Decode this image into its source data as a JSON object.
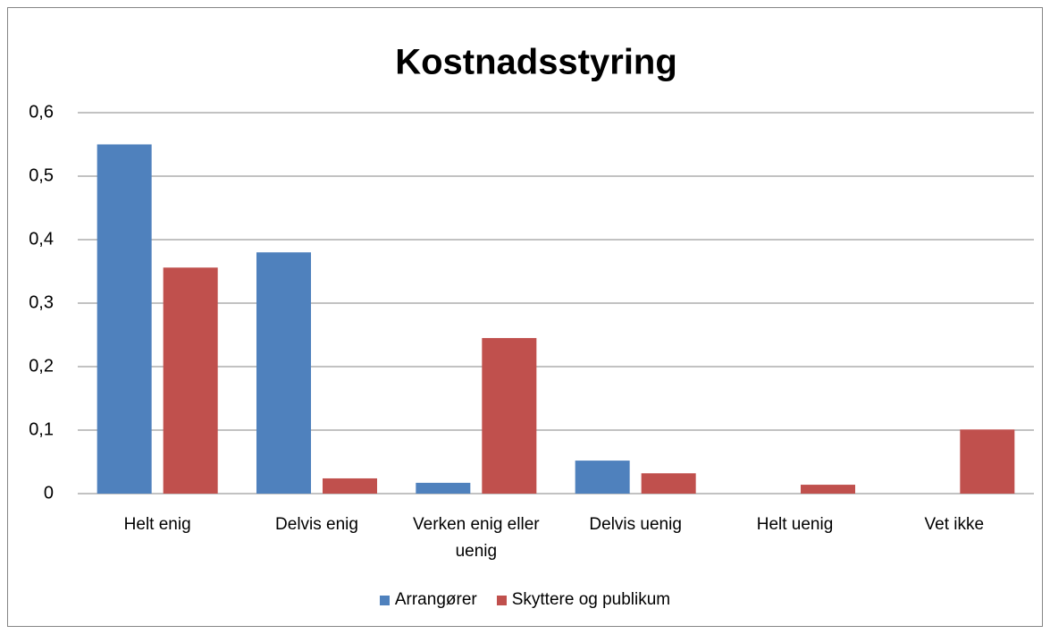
{
  "chart_data": {
    "type": "bar",
    "title": "Kostnadsstyring",
    "categories": [
      "Helt enig",
      "Delvis enig",
      "Verken enig eller uenig",
      "Delvis uenig",
      "Helt uenig",
      "Vet ikke"
    ],
    "series": [
      {
        "name": "Arrangører",
        "color": "#4f81bd",
        "values": [
          0.55,
          0.38,
          0.017,
          0.052,
          0,
          0
        ]
      },
      {
        "name": "Skyttere og publikum",
        "color": "#c0504d",
        "values": [
          0.356,
          0.024,
          0.245,
          0.032,
          0.014,
          0.101
        ]
      }
    ],
    "ylim": [
      0,
      0.6
    ],
    "yticks": [
      0,
      {
        "value": 0.1,
        "label": "0,1"
      },
      {
        "value": 0.2,
        "label": "0,2"
      },
      {
        "value": 0.3,
        "label": "0,3"
      },
      {
        "value": 0.4,
        "label": "0,4"
      },
      {
        "value": 0.5,
        "label": "0,5"
      },
      {
        "value": 0.6,
        "label": "0,6"
      }
    ],
    "grid": true,
    "legend": "bottom"
  }
}
